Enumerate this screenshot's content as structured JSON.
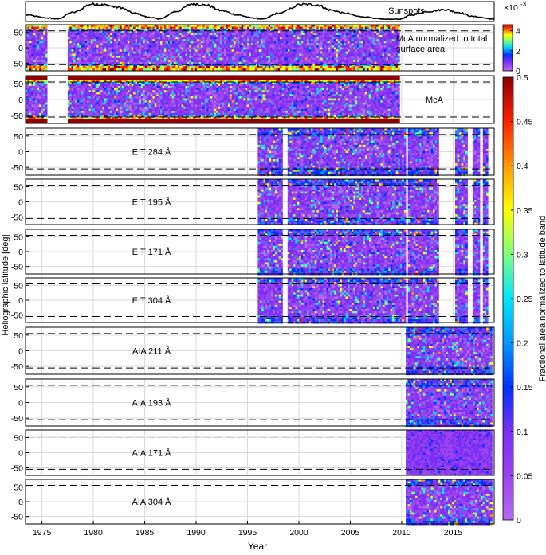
{
  "chart_data": {
    "type": "heatmap",
    "xlabel": "Year",
    "ylabel": "Heliographic latitude [deg]",
    "xlim": [
      1973.4,
      2019.0
    ],
    "xticks": [
      1975,
      1980,
      1985,
      1990,
      1995,
      2000,
      2005,
      2010,
      2015
    ],
    "yticks": [
      50,
      0,
      -50
    ],
    "ylim": [
      -75,
      75
    ],
    "dashed_latitudes": [
      55,
      -55
    ],
    "grid": true,
    "sunspots": {
      "label": "Sunspots",
      "x": [
        1973.4,
        1975.5,
        1976.5,
        1978,
        1979.9,
        1981,
        1982.5,
        1984,
        1985.5,
        1986.5,
        1988,
        1989.7,
        1991,
        1992.5,
        1994,
        1995.5,
        1996.5,
        1998,
        2000.3,
        2001.8,
        2003,
        2004.5,
        2006,
        2008.5,
        2009.8,
        2011,
        2012.5,
        2014.2,
        2015.5,
        2017,
        2019
      ],
      "y": [
        0.3,
        0.12,
        0.06,
        0.45,
        0.95,
        0.9,
        0.75,
        0.4,
        0.15,
        0.06,
        0.5,
        0.97,
        0.88,
        0.55,
        0.3,
        0.12,
        0.05,
        0.4,
        0.93,
        0.9,
        0.6,
        0.4,
        0.2,
        0.03,
        0.05,
        0.3,
        0.5,
        0.62,
        0.45,
        0.2,
        0.05
      ]
    },
    "panels": [
      {
        "label": "McA normalized to total surface area",
        "label_lines": [
          "McA normalized to total",
          "surface area"
        ],
        "colorbar": "top",
        "coverage": [
          [
            1973.4,
            1975.5
          ],
          [
            1977.5,
            2009.8
          ]
        ]
      },
      {
        "label": "McA",
        "label_lines": [
          "McA"
        ],
        "colorbar": "main",
        "coverage": [
          [
            1973.4,
            1975.5
          ],
          [
            1977.5,
            2009.8
          ]
        ]
      },
      {
        "label": "EIT 284 Å",
        "label_lines": [
          "EIT 284 Å"
        ],
        "colorbar": "main",
        "coverage": [
          [
            1996.0,
            1998.4
          ],
          [
            1998.9,
            2010.4
          ],
          [
            2010.6,
            2013.6
          ],
          [
            2015.2,
            2016.4
          ],
          [
            2016.9,
            2017.6
          ],
          [
            2017.9,
            2018.4
          ]
        ]
      },
      {
        "label": "EIT 195 Å",
        "label_lines": [
          "EIT 195 Å"
        ],
        "colorbar": "main",
        "coverage": [
          [
            1996.0,
            1998.4
          ],
          [
            1998.9,
            2010.4
          ],
          [
            2010.6,
            2013.6
          ],
          [
            2015.2,
            2016.4
          ],
          [
            2016.9,
            2017.6
          ],
          [
            2017.9,
            2018.4
          ]
        ]
      },
      {
        "label": "EIT 171 Å",
        "label_lines": [
          "EIT 171 Å"
        ],
        "colorbar": "main",
        "coverage": [
          [
            1996.0,
            1998.4
          ],
          [
            1998.9,
            2010.4
          ],
          [
            2010.6,
            2013.6
          ],
          [
            2015.2,
            2016.4
          ],
          [
            2016.9,
            2017.6
          ],
          [
            2017.9,
            2018.4
          ]
        ]
      },
      {
        "label": "EIT 304 Å",
        "label_lines": [
          "EIT 304 Å"
        ],
        "colorbar": "main",
        "coverage": [
          [
            1996.0,
            1998.4
          ],
          [
            1998.9,
            2010.4
          ],
          [
            2010.6,
            2013.6
          ],
          [
            2015.2,
            2016.4
          ],
          [
            2016.9,
            2017.6
          ],
          [
            2017.9,
            2018.4
          ]
        ]
      },
      {
        "label": "AIA 211 Å",
        "label_lines": [
          "AIA 211 Å"
        ],
        "colorbar": "main",
        "coverage": [
          [
            2010.4,
            2018.8
          ]
        ]
      },
      {
        "label": "AIA 193 Å",
        "label_lines": [
          "AIA 193 Å"
        ],
        "colorbar": "main",
        "coverage": [
          [
            2010.4,
            2018.8
          ]
        ]
      },
      {
        "label": "AIA 171 Å",
        "label_lines": [
          "AIA 171 Å"
        ],
        "colorbar": "main",
        "coverage": [
          [
            2010.4,
            2018.8
          ]
        ]
      },
      {
        "label": "AIA 304 Å",
        "label_lines": [
          "AIA 304 Å"
        ],
        "colorbar": "main",
        "coverage": [
          [
            2010.4,
            2018.8
          ]
        ]
      }
    ],
    "colorbar_top": {
      "ticks": [
        0,
        2,
        4
      ],
      "max": 4.6,
      "exponent": "×10",
      "exponent_power": "-3"
    },
    "colorbar_main": {
      "ticks": [
        0,
        0.05,
        0.1,
        0.15,
        0.2,
        0.25,
        0.3,
        0.35,
        0.4,
        0.45,
        0.5
      ],
      "max": 0.5,
      "label": "Fractional area normalized to latitude band"
    },
    "colormap": [
      "#b468f2",
      "#9b43f0",
      "#7a2ff5",
      "#0033ff",
      "#0099ff",
      "#00e5ff",
      "#7dff7d",
      "#ffff00",
      "#ff9900",
      "#ff2200",
      "#8c0000"
    ]
  }
}
